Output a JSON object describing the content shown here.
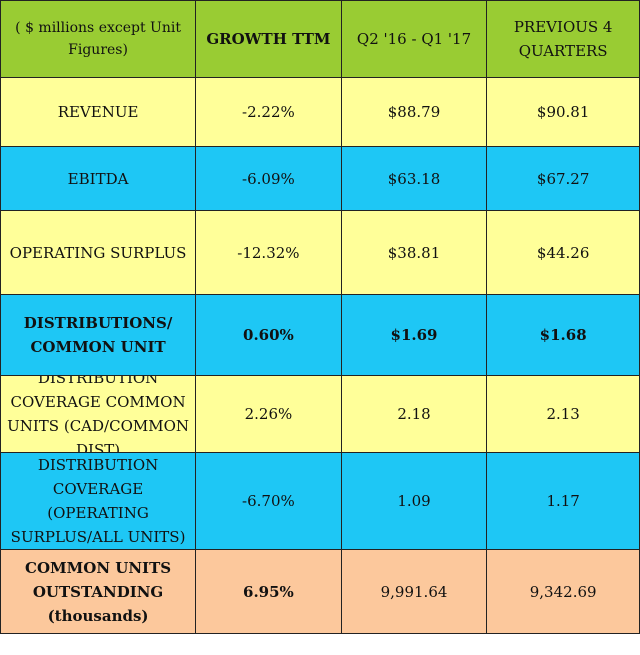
{
  "header": {
    "label": "( $ millions except Unit Figures)",
    "growth": "GROWTH TTM",
    "current": "Q2 '16 - Q1 '17",
    "previous": "PREVIOUS 4 QUARTERS"
  },
  "rows": [
    {
      "label": "REVENUE",
      "growth": "-2.22%",
      "current": "$88.79",
      "previous": "$90.81"
    },
    {
      "label": "EBITDA",
      "growth": "-6.09%",
      "current": "$63.18",
      "previous": "$67.27"
    },
    {
      "label": "OPERATING SURPLUS",
      "growth": "-12.32%",
      "current": "$38.81",
      "previous": "$44.26"
    },
    {
      "label": "DISTRIBUTIONS/ COMMON UNIT",
      "growth": "0.60%",
      "current": "$1.69",
      "previous": "$1.68"
    },
    {
      "label": "DISTRIBUTION COVERAGE COMMON UNITS (CAD/COMMON DIST)",
      "growth": "2.26%",
      "current": "2.18",
      "previous": "2.13"
    },
    {
      "label": "DISTRIBUTION COVERAGE (OPERATING SURPLUS/ALL UNITS)",
      "growth": "-6.70%",
      "current": "1.09",
      "previous": "1.17"
    },
    {
      "label": "COMMON UNITS OUTSTANDING (thousands)",
      "growth": "6.95%",
      "current": "9,991.64",
      "previous": "9,342.69"
    }
  ],
  "colors": {
    "header": "#99cc33",
    "yellow": "#ffff99",
    "blue": "#1ec7f5",
    "peach": "#fcc89c"
  }
}
